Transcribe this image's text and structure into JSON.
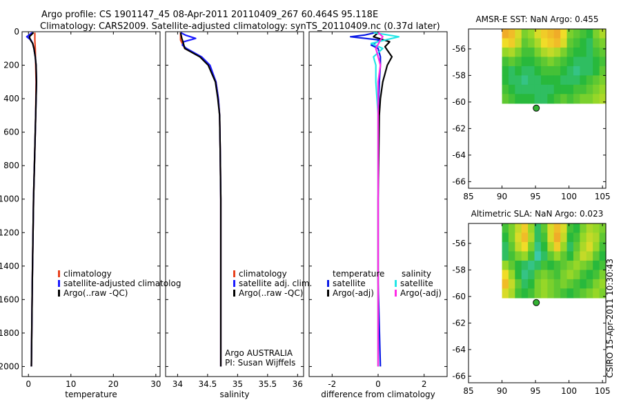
{
  "header": {
    "title_line1": "Argo profile: CS 1901147_45 08-Apr-2011 20110409_267 60.464S 95.118E",
    "title_line2": "Climatology: CARS2009. Satellite-adjusted climatology: synTS_20110409.nc (0.37d later)"
  },
  "side_stamp": "CSIRO 15-Apr-2011 10:30:43",
  "colors": {
    "climatology": "#e8401c",
    "satellite": "#1a1aff",
    "argo": "#000000",
    "temp_satellite": "#0a1ae6",
    "sal_satellite": "#22e6e6",
    "sal_argo": "#ff2ae6",
    "float_marker": "#33b233"
  },
  "chart_data": [
    {
      "id": "temperature",
      "type": "line",
      "xlabel": "temperature",
      "ylabel": "",
      "xlim": [
        -1.5,
        31
      ],
      "ylim": [
        2060,
        0
      ],
      "x_ticks": [
        0,
        10,
        20,
        30
      ],
      "y_ticks": [
        0,
        200,
        400,
        600,
        800,
        1000,
        1200,
        1400,
        1600,
        1800,
        2000
      ],
      "legend": [
        "climatology",
        "satellite-adjusted climatolog",
        "Argo(..raw -QC)"
      ],
      "series": [
        {
          "name": "climatology",
          "color_key": "climatology",
          "depth": [
            5,
            50,
            100,
            200,
            300,
            500,
            700,
            1000,
            1500,
            2000
          ],
          "values": [
            1.5,
            1.5,
            1.6,
            1.7,
            1.8,
            1.7,
            1.5,
            1.2,
            0.9,
            0.7
          ]
        },
        {
          "name": "satellite-adjusted climatology",
          "color_key": "satellite",
          "depth": [
            5,
            30,
            50,
            70,
            100,
            150,
            200,
            300,
            500,
            700,
            1000,
            1500,
            2000
          ],
          "values": [
            0.9,
            -0.4,
            0.6,
            1.0,
            1.3,
            1.6,
            1.8,
            1.9,
            1.7,
            1.5,
            1.2,
            0.9,
            0.7
          ]
        },
        {
          "name": "Argo(..raw -QC)",
          "color_key": "argo",
          "depth": [
            5,
            30,
            50,
            70,
            100,
            150,
            200,
            300,
            500,
            700,
            1000,
            1500,
            2000
          ],
          "values": [
            1.2,
            0.2,
            0.5,
            1.0,
            1.3,
            1.6,
            1.8,
            1.9,
            1.7,
            1.5,
            1.2,
            0.9,
            0.7
          ]
        }
      ]
    },
    {
      "id": "salinity",
      "type": "line",
      "xlabel": "salinity",
      "ylabel": "",
      "xlim": [
        33.8,
        36.1
      ],
      "ylim": [
        2060,
        0
      ],
      "x_ticks": [
        34,
        34.5,
        35,
        35.5,
        36
      ],
      "x_tick_labels": [
        "34",
        "34.5",
        "35",
        "35.5",
        "36"
      ],
      "legend": [
        "climatology",
        "satellite adj. clim.",
        "Argo(..raw -QC)"
      ],
      "annotations": [
        "Argo AUSTRALIA",
        "PI: Susan Wijffels"
      ],
      "series": [
        {
          "name": "climatology",
          "color_key": "climatology",
          "depth": [
            5,
            50,
            100,
            150,
            200,
            300,
            400,
            500,
            700,
            1000,
            1500,
            2000
          ],
          "values": [
            34.05,
            34.05,
            34.12,
            34.38,
            34.52,
            34.64,
            34.68,
            34.7,
            34.71,
            34.72,
            34.72,
            34.72
          ]
        },
        {
          "name": "satellite adj. clim.",
          "color_key": "satellite",
          "depth": [
            5,
            20,
            40,
            60,
            80,
            100,
            150,
            200,
            300,
            400,
            500,
            700,
            1000,
            1500,
            2000
          ],
          "values": [
            34.05,
            34.13,
            34.3,
            34.1,
            34.08,
            34.15,
            34.4,
            34.54,
            34.64,
            34.68,
            34.7,
            34.71,
            34.72,
            34.72,
            34.72
          ]
        },
        {
          "name": "Argo(..raw -QC)",
          "color_key": "argo",
          "depth": [
            5,
            40,
            60,
            100,
            150,
            200,
            300,
            400,
            500,
            700,
            1000,
            1500,
            2000
          ],
          "values": [
            34.05,
            34.07,
            34.09,
            34.12,
            34.37,
            34.51,
            34.63,
            34.67,
            34.7,
            34.71,
            34.72,
            34.72,
            34.72
          ]
        }
      ]
    },
    {
      "id": "difference",
      "type": "line",
      "xlabel": "difference from climatology",
      "ylabel": "",
      "xlim": [
        -3.0,
        3.0
      ],
      "ylim": [
        2060,
        0
      ],
      "x_ticks": [
        -2,
        0,
        2
      ],
      "legend_groups": [
        {
          "heading": "temperature",
          "items": [
            {
              "label": "satellite",
              "color_key": "temp_satellite"
            },
            {
              "label": "Argo(-adj)",
              "color_key": "argo"
            }
          ]
        },
        {
          "heading": "salinity",
          "items": [
            {
              "label": "satellite",
              "color_key": "sal_satellite"
            },
            {
              "label": "Argo(-adj)",
              "color_key": "sal_argo"
            }
          ]
        }
      ],
      "series": [
        {
          "name": "temperature satellite",
          "color_key": "temp_satellite",
          "depth": [
            5,
            20,
            30,
            50,
            80,
            100,
            150,
            200,
            300,
            500,
            1000,
            1500,
            2000
          ],
          "values": [
            -0.1,
            -0.6,
            -1.2,
            0.1,
            -0.3,
            0.0,
            0.1,
            0.1,
            0.05,
            0.0,
            0.0,
            0.0,
            0.1
          ]
        },
        {
          "name": "temperature Argo(-adj)",
          "color_key": "argo",
          "depth": [
            5,
            30,
            60,
            90,
            110,
            150,
            200,
            250,
            300,
            400,
            500,
            1000,
            1500,
            2000
          ],
          "values": [
            0.0,
            -0.2,
            0.5,
            0.3,
            0.4,
            0.6,
            0.4,
            0.3,
            0.2,
            0.1,
            0.05,
            0.0,
            0.0,
            0.0
          ]
        },
        {
          "name": "salinity satellite",
          "color_key": "sal_satellite",
          "depth": [
            5,
            30,
            50,
            70,
            100,
            150,
            200,
            300,
            500,
            700,
            1000,
            1500,
            2000
          ],
          "values": [
            -0.2,
            0.9,
            0.3,
            -0.3,
            0.2,
            -0.2,
            -0.1,
            -0.1,
            0.0,
            0.0,
            0.0,
            0.0,
            0.0
          ]
        },
        {
          "name": "salinity Argo(-adj)",
          "color_key": "sal_argo",
          "depth": [
            5,
            30,
            50,
            100,
            150,
            200,
            300,
            500,
            700,
            1000,
            1500,
            2000
          ],
          "values": [
            0.0,
            0.2,
            0.1,
            -0.1,
            0.0,
            0.1,
            0.0,
            0.0,
            0.0,
            0.0,
            0.0,
            0.0
          ]
        }
      ]
    },
    {
      "id": "sst_map",
      "type": "heatmap",
      "title": "AMSR-E SST: NaN Argo: 0.455",
      "xlim": [
        85,
        105.5
      ],
      "ylim": [
        -66.5,
        -54.5
      ],
      "x_ticks": [
        85,
        90,
        95,
        100,
        105
      ],
      "y_ticks": [
        -56,
        -58,
        -60,
        -62,
        -64,
        -66
      ],
      "data_extent": {
        "lon": [
          90,
          105.5
        ],
        "lat": [
          -60.1,
          -54.5
        ]
      },
      "float_position": {
        "lon": 95.118,
        "lat": -60.464
      },
      "values": [
        [
          0.9,
          0.85,
          0.7,
          0.5,
          0.55,
          0.7,
          0.8,
          0.85,
          0.9,
          0.75,
          0.5,
          0.45,
          0.4,
          0.35,
          0.5,
          0.6
        ],
        [
          0.75,
          0.8,
          0.65,
          0.45,
          0.5,
          0.6,
          0.75,
          0.8,
          0.85,
          0.7,
          0.45,
          0.4,
          0.35,
          0.3,
          0.45,
          0.5
        ],
        [
          0.55,
          0.6,
          0.5,
          0.4,
          0.4,
          0.5,
          0.6,
          0.65,
          0.6,
          0.5,
          0.4,
          0.35,
          0.35,
          0.3,
          0.4,
          0.45
        ],
        [
          0.4,
          0.45,
          0.4,
          0.35,
          0.35,
          0.4,
          0.45,
          0.5,
          0.45,
          0.4,
          0.35,
          0.3,
          0.3,
          0.3,
          0.35,
          0.4
        ],
        [
          0.35,
          0.3,
          0.35,
          0.3,
          0.3,
          0.35,
          0.4,
          0.4,
          0.4,
          0.35,
          0.3,
          0.25,
          0.3,
          0.3,
          0.35,
          0.45
        ],
        [
          0.35,
          0.3,
          0.3,
          0.25,
          0.3,
          0.3,
          0.35,
          0.35,
          0.35,
          0.3,
          0.3,
          0.3,
          0.35,
          0.4,
          0.45,
          0.5
        ],
        [
          0.4,
          0.35,
          0.3,
          0.3,
          0.3,
          0.3,
          0.3,
          0.3,
          0.35,
          0.35,
          0.35,
          0.4,
          0.4,
          0.45,
          0.5,
          0.55
        ],
        [
          0.45,
          0.4,
          0.35,
          0.35,
          0.35,
          0.3,
          0.3,
          0.35,
          0.4,
          0.45,
          0.4,
          0.45,
          0.5,
          0.5,
          0.55,
          0.6
        ]
      ]
    },
    {
      "id": "sla_map",
      "type": "heatmap",
      "title": "Altimetric SLA: NaN Argo: 0.023",
      "xlim": [
        85,
        105.5
      ],
      "ylim": [
        -66.5,
        -54.5
      ],
      "x_ticks": [
        85,
        90,
        95,
        100,
        105
      ],
      "y_ticks": [
        -56,
        -58,
        -60,
        -62,
        -64,
        -66
      ],
      "data_extent": {
        "lon": [
          90,
          105.5
        ],
        "lat": [
          -60.1,
          -54.5
        ]
      },
      "float_position": {
        "lon": 95.118,
        "lat": -60.464
      },
      "values": [
        [
          0.4,
          0.5,
          0.65,
          0.8,
          0.55,
          0.3,
          0.45,
          0.7,
          0.85,
          0.7,
          0.4,
          0.35,
          0.5,
          0.6,
          0.55,
          0.5
        ],
        [
          0.35,
          0.5,
          0.7,
          0.85,
          0.6,
          0.3,
          0.4,
          0.7,
          0.9,
          0.65,
          0.35,
          0.4,
          0.55,
          0.65,
          0.6,
          0.45
        ],
        [
          0.3,
          0.45,
          0.65,
          0.75,
          0.5,
          0.25,
          0.35,
          0.6,
          0.8,
          0.55,
          0.3,
          0.45,
          0.6,
          0.7,
          0.55,
          0.4
        ],
        [
          0.3,
          0.4,
          0.5,
          0.55,
          0.4,
          0.2,
          0.3,
          0.45,
          0.55,
          0.45,
          0.35,
          0.5,
          0.65,
          0.6,
          0.45,
          0.35
        ],
        [
          0.55,
          0.45,
          0.35,
          0.3,
          0.25,
          0.3,
          0.4,
          0.35,
          0.4,
          0.45,
          0.5,
          0.55,
          0.5,
          0.45,
          0.35,
          0.4
        ],
        [
          0.75,
          0.55,
          0.35,
          0.25,
          0.3,
          0.45,
          0.5,
          0.45,
          0.4,
          0.5,
          0.55,
          0.5,
          0.4,
          0.35,
          0.4,
          0.5
        ],
        [
          0.85,
          0.65,
          0.45,
          0.3,
          0.35,
          0.5,
          0.55,
          0.5,
          0.45,
          0.5,
          0.45,
          0.4,
          0.35,
          0.4,
          0.5,
          0.55
        ],
        [
          0.7,
          0.6,
          0.4,
          0.35,
          0.4,
          0.5,
          0.55,
          0.5,
          0.45,
          0.4,
          0.35,
          0.4,
          0.45,
          0.5,
          0.55,
          0.5
        ]
      ]
    }
  ]
}
